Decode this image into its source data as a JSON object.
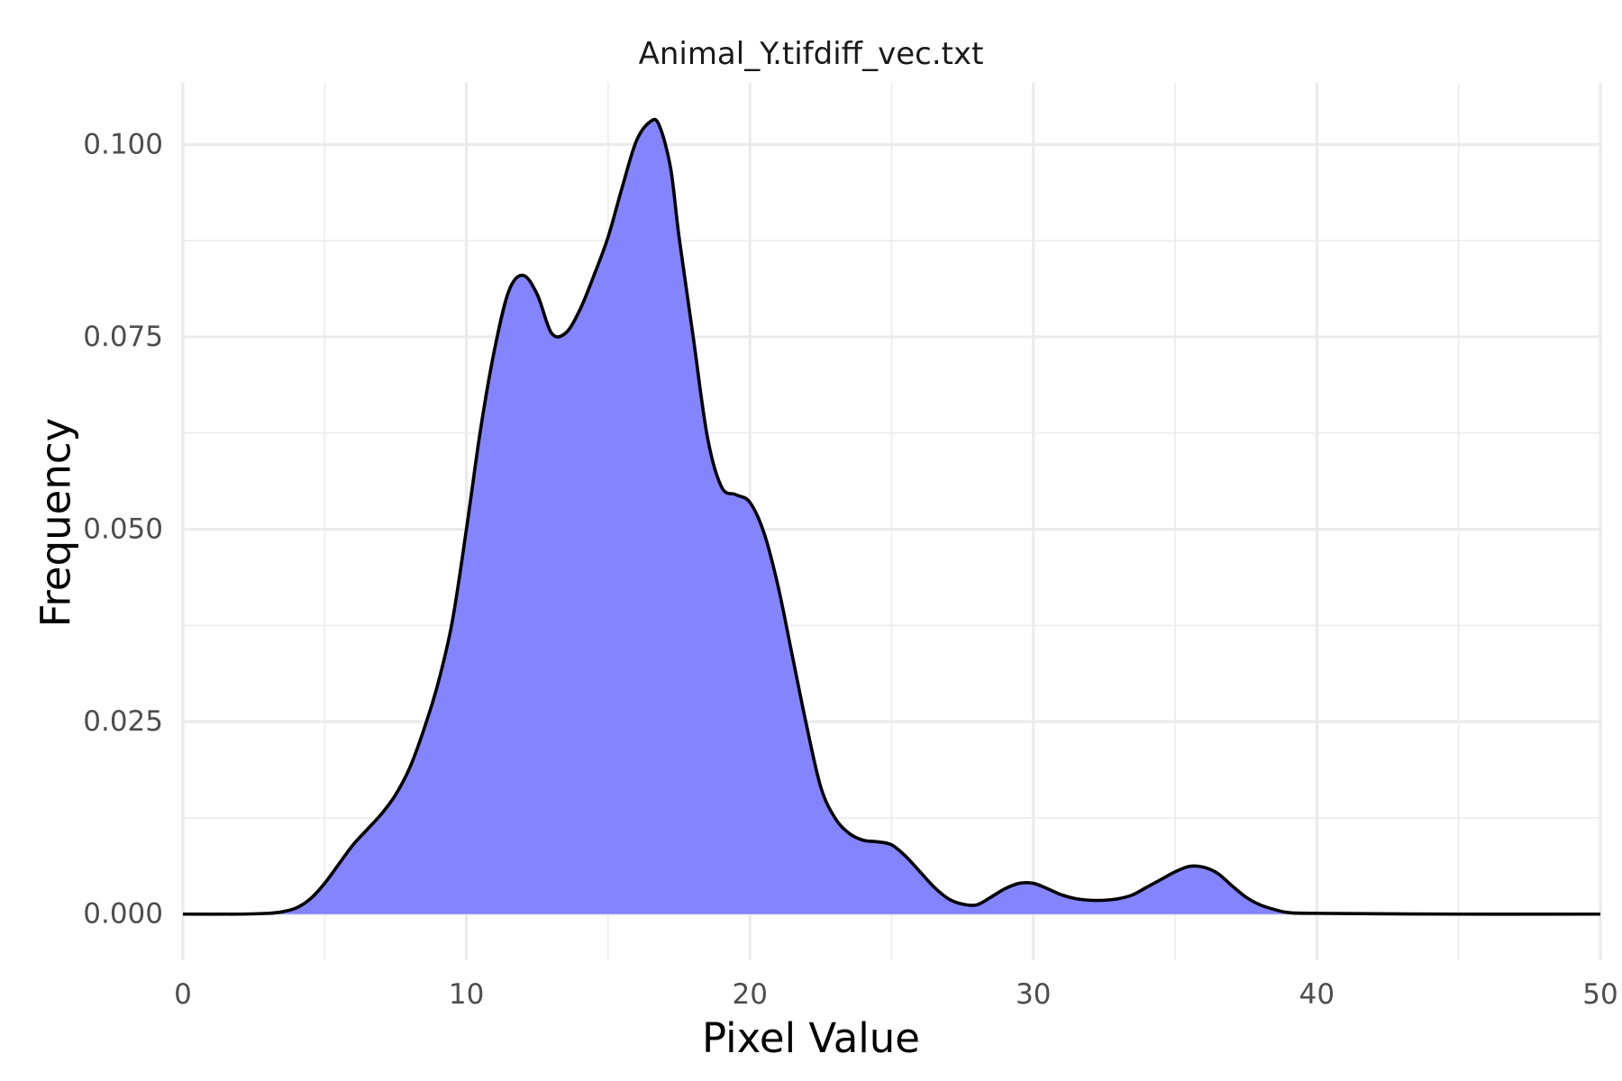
{
  "chart_data": {
    "type": "area",
    "title": "Animal_Y.tifdiff_vec.txt",
    "xlabel": "Pixel Value",
    "ylabel": "Frequency",
    "xlim": [
      0,
      50
    ],
    "ylim": [
      -0.006,
      0.108
    ],
    "x_ticks": [
      0,
      10,
      20,
      30,
      40,
      50
    ],
    "x_tick_labels": [
      "0",
      "10",
      "20",
      "30",
      "40",
      "50"
    ],
    "y_ticks": [
      0,
      0.025,
      0.05,
      0.075,
      0.1
    ],
    "y_tick_labels": [
      "0.000",
      "0.025",
      "0.050",
      "0.075",
      "0.100"
    ],
    "grid": true,
    "fill_color": "#8080ff",
    "line_color": "#000000",
    "grid_color": "#ebebeb",
    "series": [
      {
        "x": [
          0,
          2,
          3,
          3.5,
          4,
          4.5,
          5,
          5.5,
          6,
          6.5,
          7,
          7.5,
          8,
          8.5,
          9,
          9.5,
          10,
          10.5,
          11,
          11.5,
          12,
          12.5,
          13,
          13.5,
          14,
          14.5,
          15,
          15.5,
          16,
          16.5,
          16.8,
          17.2,
          17.5,
          18,
          18.5,
          19,
          19.5,
          20,
          20.5,
          21,
          21.5,
          22,
          22.5,
          23,
          23.5,
          24,
          24.5,
          25,
          25.5,
          26,
          26.5,
          27,
          27.5,
          28,
          28.5,
          29,
          29.5,
          30,
          30.5,
          31,
          31.5,
          32,
          32.5,
          33,
          33.5,
          34,
          34.5,
          35,
          35.5,
          36,
          36.5,
          37,
          37.5,
          38,
          38.5,
          39,
          40,
          45,
          50
        ],
        "y": [
          0,
          0,
          0.0001,
          0.0003,
          0.0008,
          0.002,
          0.004,
          0.0065,
          0.009,
          0.011,
          0.013,
          0.0155,
          0.019,
          0.024,
          0.03,
          0.038,
          0.05,
          0.063,
          0.0735,
          0.081,
          0.083,
          0.0805,
          0.0755,
          0.0755,
          0.0785,
          0.083,
          0.088,
          0.0945,
          0.1005,
          0.103,
          0.1025,
          0.097,
          0.088,
          0.075,
          0.062,
          0.0555,
          0.0545,
          0.0535,
          0.0495,
          0.0425,
          0.0335,
          0.0245,
          0.0165,
          0.0125,
          0.0105,
          0.0096,
          0.0094,
          0.009,
          0.0075,
          0.0055,
          0.0035,
          0.002,
          0.0013,
          0.0012,
          0.0022,
          0.0033,
          0.004,
          0.004,
          0.0033,
          0.0025,
          0.002,
          0.0018,
          0.0018,
          0.002,
          0.0025,
          0.0035,
          0.0045,
          0.0055,
          0.0062,
          0.0061,
          0.0053,
          0.0037,
          0.0022,
          0.0012,
          0.0006,
          0.0002,
          0.0001,
          0,
          0
        ]
      }
    ]
  }
}
